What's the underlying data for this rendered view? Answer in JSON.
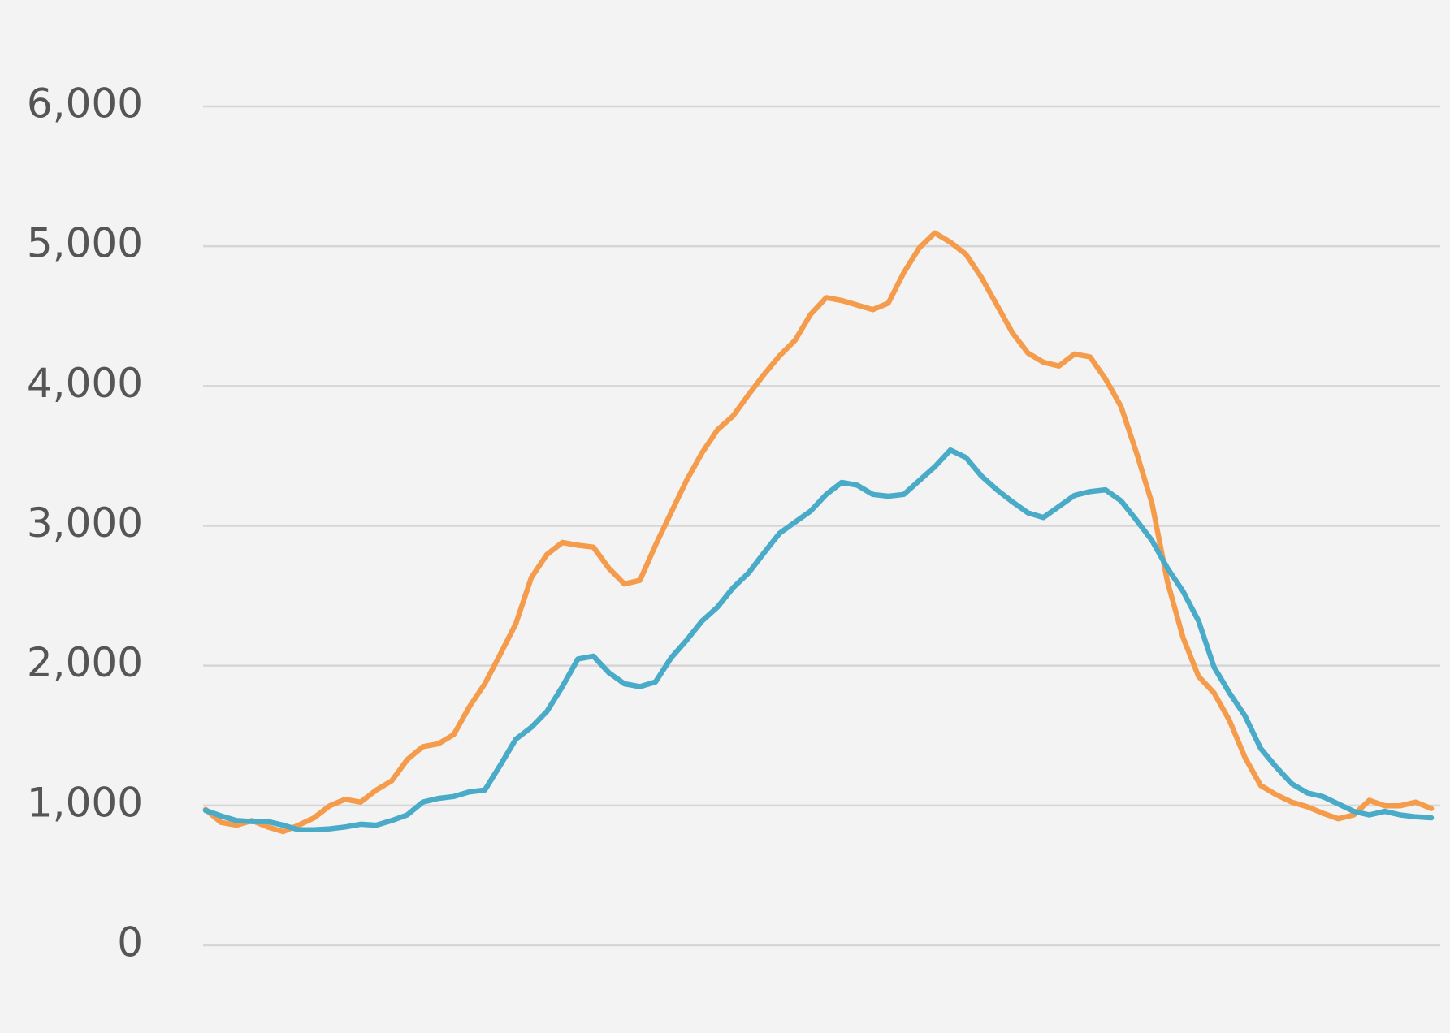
{
  "chart_data": {
    "type": "line",
    "ylim": [
      0,
      6000
    ],
    "yticks": [
      0,
      {
        "value": 1000,
        "label": "1,000"
      },
      {
        "value": 2000,
        "label": "2,000"
      },
      {
        "value": 3000,
        "label": "3,000"
      },
      {
        "value": 4000,
        "label": "4,000"
      },
      {
        "value": 5000,
        "label": "5,000"
      },
      {
        "value": 6000,
        "label": "6,000"
      }
    ],
    "grid": true,
    "series": [
      {
        "color": "#f59c4c",
        "values": [
          971,
          879,
          859,
          892,
          846,
          813,
          859,
          912,
          998,
          1044,
          1024,
          1110,
          1176,
          1328,
          1421,
          1441,
          1507,
          1705,
          1870,
          2082,
          2300,
          2630,
          2795,
          2881,
          2861,
          2848,
          2696,
          2584,
          2610,
          2861,
          3093,
          3324,
          3522,
          3687,
          3786,
          3938,
          4084,
          4216,
          4328,
          4513,
          4632,
          4612,
          4579,
          4546,
          4593,
          4811,
          4989,
          5095,
          5029,
          4943,
          4778,
          4579,
          4381,
          4236,
          4170,
          4143,
          4229,
          4209,
          4051,
          3853,
          3522,
          3159,
          2597,
          2200,
          1923,
          1804,
          1606,
          1341,
          1143,
          1077,
          1024,
          991,
          945,
          905,
          932,
          1037,
          998,
          998,
          1024,
          978
        ]
      },
      {
        "color": "#4aabc8",
        "values": [
          965,
          925,
          892,
          885,
          885,
          859,
          826,
          826,
          833,
          846,
          866,
          859,
          892,
          932,
          1024,
          1051,
          1064,
          1097,
          1110,
          1289,
          1474,
          1559,
          1672,
          1850,
          2048,
          2068,
          1949,
          1870,
          1850,
          1883,
          2055,
          2181,
          2319,
          2419,
          2557,
          2663,
          2808,
          2947,
          3027,
          3106,
          3225,
          3311,
          3291,
          3225,
          3212,
          3225,
          3324,
          3423,
          3542,
          3489,
          3357,
          3258,
          3172,
          3093,
          3060,
          3139,
          3218,
          3245,
          3258,
          3179,
          3040,
          2894,
          2696,
          2531,
          2319,
          1989,
          1804,
          1639,
          1408,
          1275,
          1156,
          1090,
          1064,
          1011,
          958,
          932,
          958,
          932,
          919,
          912
        ]
      }
    ]
  }
}
